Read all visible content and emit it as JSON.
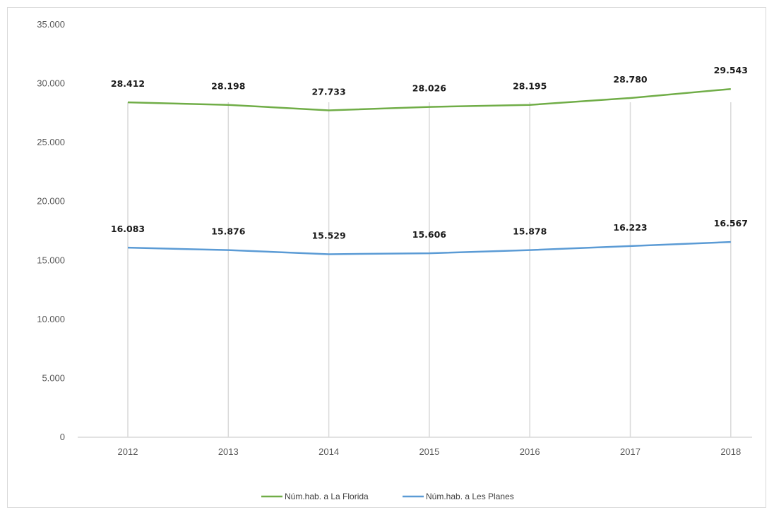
{
  "chart_data": {
    "type": "line",
    "categories": [
      "2012",
      "2013",
      "2014",
      "2015",
      "2016",
      "2017",
      "2018"
    ],
    "y_ticks": [
      "0",
      "5.000",
      "10.000",
      "15.000",
      "20.000",
      "25.000",
      "30.000",
      "35.000"
    ],
    "ylim": [
      0,
      35000
    ],
    "grid": "vertical",
    "legend_position": "bottom",
    "series": [
      {
        "name": "Núm.hab. a La Florida",
        "color": "#70ad47",
        "values": [
          28412,
          28198,
          27733,
          28026,
          28195,
          28780,
          29543
        ],
        "labels": [
          "28.412",
          "28.198",
          "27.733",
          "28.026",
          "28.195",
          "28.780",
          "29.543"
        ]
      },
      {
        "name": "Núm.hab. a Les Planes",
        "color": "#5b9bd5",
        "values": [
          16083,
          15876,
          15529,
          15606,
          15878,
          16223,
          16567
        ],
        "labels": [
          "16.083",
          "15.876",
          "15.529",
          "15.606",
          "15.878",
          "16.223",
          "16.567"
        ]
      }
    ]
  }
}
